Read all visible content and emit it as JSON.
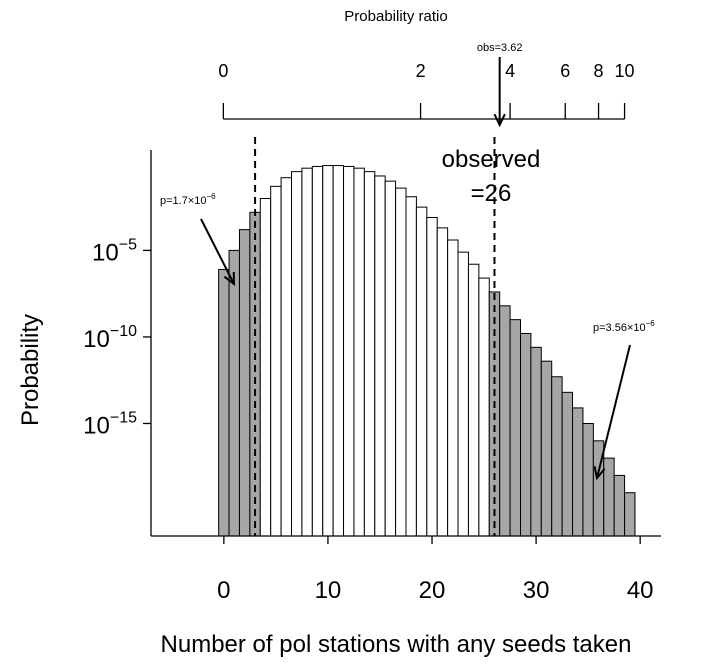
{
  "chart_data": {
    "type": "bar",
    "x": [
      0,
      1,
      2,
      3,
      4,
      5,
      6,
      7,
      8,
      9,
      10,
      11,
      12,
      13,
      14,
      15,
      16,
      17,
      18,
      19,
      20,
      21,
      22,
      23,
      24,
      25,
      26,
      27,
      28,
      29,
      30,
      31,
      32,
      33,
      34,
      35,
      36,
      37,
      38,
      39
    ],
    "log10_probability": [
      -6.1,
      -5.0,
      -3.8,
      -2.8,
      -2.0,
      -1.3,
      -0.8,
      -0.45,
      -0.25,
      -0.15,
      -0.1,
      -0.1,
      -0.15,
      -0.25,
      -0.45,
      -0.7,
      -1.0,
      -1.4,
      -1.9,
      -2.5,
      -3.1,
      -3.7,
      -4.4,
      -5.1,
      -5.8,
      -6.6,
      -7.4,
      -8.2,
      -9.0,
      -9.8,
      -10.6,
      -11.4,
      -12.3,
      -13.2,
      -14.1,
      -15.0,
      -16.0,
      -17.0,
      -18.0,
      -19.0
    ],
    "bar_fill": {
      "tail": "#a6a6a6",
      "middle": "#ffffff"
    },
    "tail_ranges": [
      [
        0,
        3
      ],
      [
        26,
        39
      ]
    ],
    "xlabel": "Number of pol stations with any seeds taken",
    "ylabel": "Probability",
    "x_ticks": [
      "0",
      "10",
      "20",
      "30",
      "40"
    ],
    "x_tick_values": [
      0,
      10,
      20,
      30,
      40
    ],
    "xlim": [
      -7,
      42
    ],
    "y_ticks": [
      {
        "value": -5,
        "base": "10",
        "exp": "−5"
      },
      {
        "value": -10,
        "base": "10",
        "exp": "−10"
      },
      {
        "value": -15,
        "base": "10",
        "exp": "−15"
      }
    ],
    "ylim_log10": [
      -21.5,
      0.8
    ],
    "top_axis": {
      "title": "Probability ratio",
      "ticks": [
        "0",
        "2",
        "4",
        "6",
        "8",
        "10"
      ],
      "tick_positions_x": [
        -0.05,
        18.9,
        27.5,
        32.8,
        36.0,
        38.5
      ]
    },
    "dashed_lines_x": [
      3,
      26
    ],
    "annotations": {
      "observed_line1": "observed",
      "observed_line2": "=26",
      "obs_ratio": "obs=3.62",
      "obs_ratio_x": 26.5,
      "p_left_prefix": "p=1.7×10",
      "p_left_exp": "−6",
      "p_right_prefix": "p=3.56×10",
      "p_right_exp": "−6"
    }
  }
}
